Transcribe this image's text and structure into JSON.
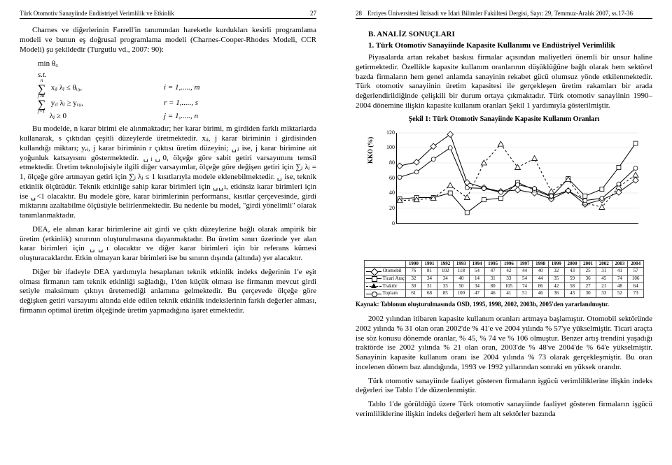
{
  "left": {
    "header_title": "Türk Otomotiv Sanayiinde Endüstriyel Verimlilik ve Etkinlik",
    "header_page": "27",
    "p1": "Charnes ve diğerlerinin Farrell'in tanımından hareketle kurdukları kesirli programlama modeli ve bunun eş doğrusal programlama modeli (Charnes-Cooper-Rhodes Modeli, CCR Modeli) şu şekildedir (Turgutlu vd., 2007: 90):",
    "f_min": "min θ₀",
    "f_st": "s.t.",
    "f_r1_eq": "xᵢⱼ λⱼ ≤ θᵢ₀,",
    "f_r1_idx": "i = 1,....., m",
    "f_r2_eq": "yᵣⱼ λⱼ ≥ yᵣ₀,",
    "f_r2_idx": "r = 1,....., s",
    "f_r3_eq": "λⱼ ≥ 0",
    "f_r3_idx": "j = 1,....., n",
    "p2": "Bu modelde, n karar birimi ele alınmaktadır; her karar birimi, m girdiden farklı miktarlarda kullanarak, s çıktıdan çeşitli düzeylerde üretmektedir. xᵢⱼ, j karar biriminin i girdisinden kullandığı miktarı; yᵣⱼ, j karar biriminin r çıktısı üretim düzeyini; ␣ⱼ ise, j karar birimine ait yoğunluk katsayısını göstermektedir. ␣ⱼ␣0, ölçeğe göre sabit getiri varsayımını temsil etmektedir. Üretim teknolojisiyle ilgili diğer varsayımlar, ölçeğe göre değişen getiri için ∑ⱼ λⱼ = 1, ölçeğe göre artmayan getiri için ∑ⱼ λⱼ ≤ 1 kısıtlarıyla modele eklenebilmektedir. ␣ ise, teknik etkinlik ölçütüdür. Teknik etkinliğe sahip karar birimleri için ␣␣ı, etkinsiz karar birimleri için ise ␣<1 olacaktır. Bu modele göre, karar birimlerinin performansı, kısıtlar çerçevesinde, girdi miktarını azaltabilme ölçüsüyle belirlenmektedir. Bu nedenle bu model, \"girdi yönelimli\" olarak tanımlanmaktadır.",
    "p3": "DEA, ele alınan karar birimlerine ait girdi ve çıktı düzeylerine bağlı olarak ampirik bir üretim (etkinlik) sınırının oluşturulmasına dayanmaktadır. Bu üretim sınırı üzerinde yer alan karar birimleri için ␣␣ı olacaktır ve diğer karar birimleri için bir referans kümesi oluşturacaklardır. Etkin olmayan karar birimleri ise bu sınırın dışında (altında) yer alacaktır.",
    "p4": "Diğer bir ifadeyle DEA yardımıyla hesaplanan teknik etkinlik indeks değerinin 1'e eşit olması firmanın tam teknik etkinliği sağladığı, 1'den küçük olması ise firmanın mevcut girdi setiyle maksimum çıktıyı üretemediği anlamına gelmektedir. Bu çerçevede ölçeğe göre değişken getiri varsayımı altında elde edilen teknik etkinlik indekslerinin farklı değerler alması, firmanın optimal üretim ölçeğinde üretim yapmadığına işaret etmektedir."
  },
  "right": {
    "header_page": "28",
    "header_title": "Erciyes Üniversitesi İktisadi ve İdari Bilimler Fakültesi Dergisi, Sayı: 29, Temmuz-Aralık 2007, ss.17-36",
    "section_b": "B. ANALİZ SONUÇLARI",
    "sub_1": "1. Türk Otomotiv Sanayiinde Kapasite Kullanımı ve Endüstriyel Verimlilik",
    "p1": "Piyasalarda artan rekabet baskısı firmalar açısından maliyetleri önemli bir unsur haline getirmektedir. Özellikle kapasite kullanım oranlarının düşüklüğüne bağlı olarak hem sektörel bazda firmaların hem genel anlamda sanayinin rekabet gücü olumsuz yönde etkilenmektedir. Türk otomotiv sanayiinin üretim kapasitesi ile gerçekleşen üretim rakamları bir arada değerlendirildiğinde çelişkili bir durum ortaya çıkmaktadır. Türk otomotiv sanayiinin 1990–2004 dönemine ilişkin kapasite kullanım oranları Şekil 1 yardımıyla gösterilmiştir.",
    "fig_caption": "Şekil 1: Türk Otomotiv Sanayiinde Kapasite Kullanım Oranları",
    "source": "Kaynak: Tablonun oluşturulmasında OSD, 1995, 1998, 2002, 2003b, 2005'den yararlanılmıştır.",
    "p2": "2002 yılından itibaren kapasite kullanım oranları artmaya başlamıştır. Otomobil sektöründe 2002 yılında % 31 olan oran 2002'de % 41'e ve 2004 yılında % 57'ye yükselmiştir. Ticari araçta ise söz konusu dönemde oranlar, % 45, % 74 ve % 106 olmuştur. Benzer artış trendini yaşadığı traktörde ise 2002 yılında % 21 olan oran, 2003'de % 48've 2004'de % 64'e yükselmiştir. Sanayinin kapasite kullanım oranı ise 2004 yılında % 73 olarak gerçekleşmiştir. Bu oran incelenen dönem baz alındığında, 1993 ve 1992 yıllarından sonraki en yüksek orandır.",
    "p3": "Türk otomotiv sanayiinde faaliyet gösteren firmaların işgücü verimliliklerine ilişkin indeks değerleri ise Tablo 1'de düzenlenmiştir.",
    "p4": "Tablo 1'de görüldüğü üzere Türk otomotiv sanayiinde faaliyet gösteren firmaların işgücü verimliliklerine ilişkin indeks değerleri hem alt sektörler bazında",
    "chart": {
      "ylabel": "KKO (%)",
      "ylim": [
        0,
        120
      ],
      "ytick_step": 20,
      "years": [
        1990,
        1991,
        1992,
        1993,
        1994,
        1995,
        1996,
        1997,
        1998,
        1999,
        2000,
        2001,
        2002,
        2003,
        2004
      ],
      "series": [
        {
          "key": "oto",
          "label": "Otomobil",
          "marker": "diamond",
          "dash": false,
          "values": [
            76,
            81,
            102,
            118,
            54,
            47,
            42,
            44,
            40,
            32,
            43,
            25,
            31,
            41,
            57
          ]
        },
        {
          "key": "tic",
          "label": "Ticari Araç",
          "marker": "square",
          "dash": false,
          "values": [
            32,
            34,
            34,
            40,
            14,
            31,
            33,
            54,
            44,
            35,
            59,
            36,
            45,
            74,
            106
          ]
        },
        {
          "key": "tra",
          "label": "Traktör",
          "marker": "triangle",
          "dash": true,
          "values": [
            30,
            31,
            33,
            50,
            34,
            80,
            105,
            74,
            86,
            42,
            58,
            27,
            21,
            48,
            64
          ]
        },
        {
          "key": "top",
          "label": "Toplam",
          "marker": "circle",
          "dash": false,
          "values": [
            61,
            68,
            85,
            100,
            47,
            46,
            41,
            51,
            46,
            36,
            43,
            30,
            33,
            52,
            73
          ]
        }
      ]
    }
  }
}
